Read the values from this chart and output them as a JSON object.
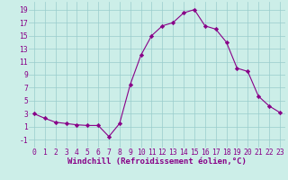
{
  "x": [
    0,
    1,
    2,
    3,
    4,
    5,
    6,
    7,
    8,
    9,
    10,
    11,
    12,
    13,
    14,
    15,
    16,
    17,
    18,
    19,
    20,
    21,
    22,
    23
  ],
  "y": [
    3.0,
    2.3,
    1.7,
    1.5,
    1.3,
    1.2,
    1.2,
    -0.5,
    1.5,
    7.5,
    12.0,
    15.0,
    16.5,
    17.0,
    18.5,
    19.0,
    16.5,
    16.0,
    14.0,
    10.0,
    9.5,
    5.7,
    4.2,
    3.2
  ],
  "line_color": "#880088",
  "marker": "D",
  "marker_size": 2.2,
  "bg_color": "#cceee8",
  "grid_color": "#99cccc",
  "xlabel": "Windchill (Refroidissement éolien,°C)",
  "xlabel_fontsize": 6.5,
  "tick_fontsize": 5.8,
  "tick_color": "#880088",
  "label_color": "#880088",
  "yticks": [
    -1,
    1,
    3,
    5,
    7,
    9,
    11,
    13,
    15,
    17,
    19
  ],
  "ylim": [
    -2.2,
    20.2
  ],
  "xlim": [
    -0.5,
    23.5
  ]
}
